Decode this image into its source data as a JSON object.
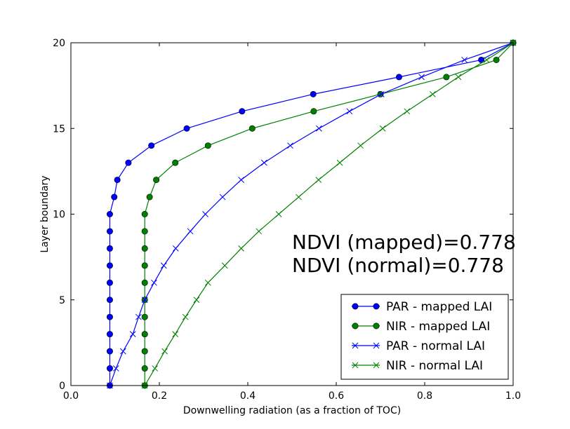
{
  "chart_data": {
    "type": "line",
    "title": "",
    "xlabel": "Downwelling radiation (as a fraction of TOC)",
    "ylabel": "Layer boundary",
    "xlim": [
      0.0,
      1.0
    ],
    "ylim": [
      0,
      20
    ],
    "x_ticks": [
      "0.0",
      "0.2",
      "0.4",
      "0.6",
      "0.8",
      "1.0"
    ],
    "y_ticks": [
      "0",
      "5",
      "10",
      "15",
      "20"
    ],
    "grid": false,
    "legend_position": "bottom-right",
    "annotations": [
      "NDVI (mapped)=0.778",
      "NDVI (normal)=0.778"
    ],
    "layers": [
      0,
      1,
      2,
      3,
      4,
      5,
      6,
      7,
      8,
      9,
      10,
      11,
      12,
      13,
      14,
      15,
      16,
      17,
      18,
      19,
      20
    ],
    "series": [
      {
        "name": "PAR - mapped LAI",
        "color": "#0000ff",
        "marker": "circle",
        "x": [
          0.088,
          0.088,
          0.088,
          0.088,
          0.088,
          0.088,
          0.088,
          0.088,
          0.088,
          0.088,
          0.088,
          0.098,
          0.105,
          0.13,
          0.182,
          0.262,
          0.387,
          0.548,
          0.742,
          0.928,
          1.0
        ]
      },
      {
        "name": "NIR - mapped LAI",
        "color": "#008000",
        "marker": "circle",
        "x": [
          0.167,
          0.167,
          0.167,
          0.167,
          0.167,
          0.167,
          0.167,
          0.167,
          0.167,
          0.167,
          0.167,
          0.178,
          0.193,
          0.236,
          0.31,
          0.41,
          0.549,
          0.7,
          0.849,
          0.962,
          1.0
        ]
      },
      {
        "name": "PAR - normal LAI",
        "color": "#0000ff",
        "marker": "x",
        "x": [
          0.088,
          0.102,
          0.118,
          0.14,
          0.153,
          0.167,
          0.188,
          0.21,
          0.237,
          0.27,
          0.304,
          0.343,
          0.385,
          0.437,
          0.496,
          0.561,
          0.63,
          0.702,
          0.793,
          0.89,
          1.0
        ]
      },
      {
        "name": "NIR - normal LAI",
        "color": "#008000",
        "marker": "x",
        "x": [
          0.167,
          0.19,
          0.212,
          0.236,
          0.259,
          0.284,
          0.31,
          0.348,
          0.385,
          0.425,
          0.47,
          0.515,
          0.56,
          0.608,
          0.655,
          0.705,
          0.76,
          0.818,
          0.876,
          0.94,
          1.0
        ]
      }
    ]
  }
}
